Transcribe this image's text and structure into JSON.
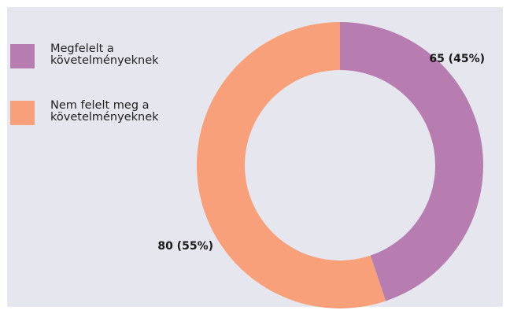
{
  "chart_data": {
    "type": "donut",
    "categories": [
      "Megfelelt a követelményeknek",
      "Nem felelt meg a követelményeknek"
    ],
    "values": [
      65,
      80
    ],
    "percentages": [
      45,
      55
    ],
    "data_labels": [
      "65 (45%)",
      "80 (55%)"
    ],
    "colors": [
      "#b87db0",
      "#f8a07a"
    ],
    "legend_position": "top-left",
    "title": "",
    "background": "#e5e6ee"
  },
  "legend": {
    "items": [
      {
        "label": "Megfelelt a követelményeknek",
        "color": "#b87db0"
      },
      {
        "label": "Nem felelt meg a követelményeknek",
        "color": "#f8a07a"
      }
    ]
  }
}
